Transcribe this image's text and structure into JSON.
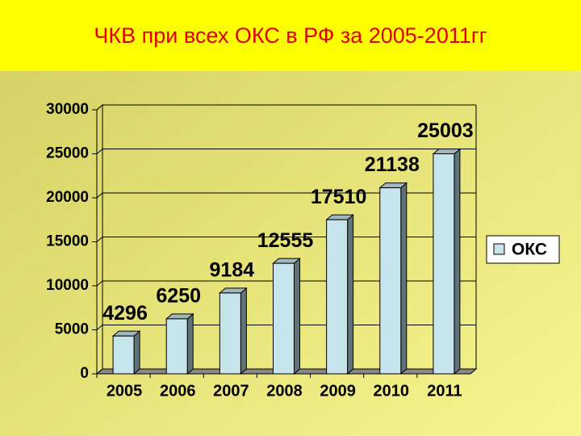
{
  "chart_data": {
    "type": "bar3d",
    "title": "ЧКВ при всех ОКС в РФ за 2005-2011гг",
    "categories": [
      "2005",
      "2006",
      "2007",
      "2008",
      "2009",
      "2010",
      "2011"
    ],
    "series": [
      {
        "name": "ОКС",
        "color": "#c6e4ec",
        "values": [
          4296,
          6250,
          9184,
          12555,
          17510,
          21138,
          25003
        ]
      }
    ],
    "ylim": [
      0,
      30000
    ],
    "yticks": [
      0,
      5000,
      10000,
      15000,
      20000,
      25000,
      30000
    ],
    "grid": true,
    "legend": "right",
    "data_labels": true
  }
}
